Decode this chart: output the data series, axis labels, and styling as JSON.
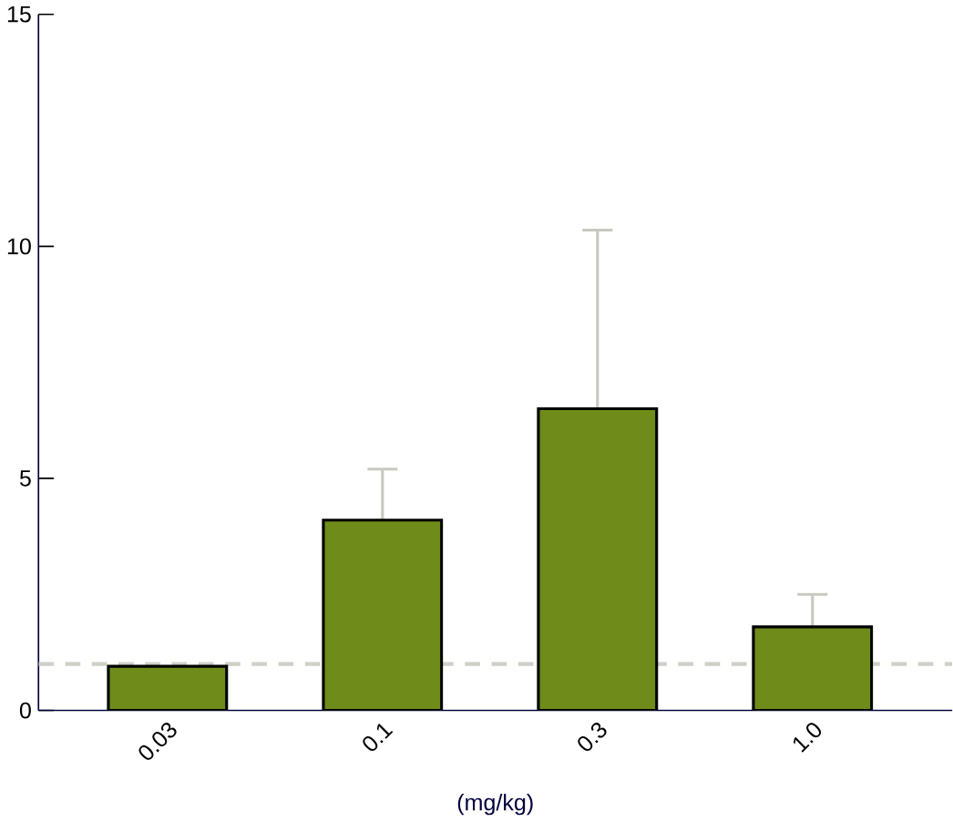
{
  "chart_data": {
    "type": "bar",
    "xlabel": "(mg/kg)",
    "categories": [
      "0.03",
      "0.1",
      "0.3",
      "1.0"
    ],
    "values": [
      0.95,
      4.1,
      6.5,
      1.8
    ],
    "color": "#6f8c1a",
    "errors": [
      null,
      [
        4.1,
        5.2
      ],
      [
        6.5,
        10.35
      ],
      [
        1.8,
        2.5
      ]
    ],
    "ylim": [
      0,
      15
    ],
    "yticks": [
      0,
      5,
      10,
      15
    ],
    "grid": false,
    "ref_lines": [
      {
        "axis": "y",
        "value": 1,
        "color": "#d0d0c8",
        "line_style": "dashed"
      }
    ]
  }
}
